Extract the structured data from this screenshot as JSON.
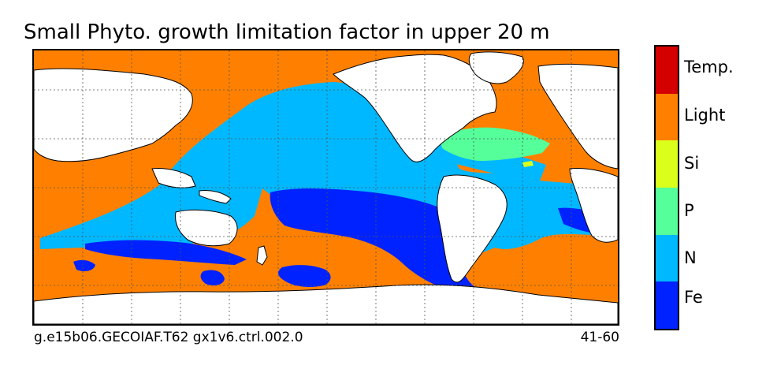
{
  "title": "Small Phyto. growth limitation factor in upper 20 m",
  "footer": {
    "left": "g.e15b06.GECOIAF.T62 gx1v6.ctrl.002.0",
    "right": "41-60"
  },
  "colorbar": {
    "entries": [
      {
        "label": "Temp.",
        "color": "#d40000"
      },
      {
        "label": "Light",
        "color": "#ff8000"
      },
      {
        "label": "Si",
        "color": "#d9ff1a"
      },
      {
        "label": "P",
        "color": "#55ff99"
      },
      {
        "label": "N",
        "color": "#00b8ff"
      },
      {
        "label": "Fe",
        "color": "#0022ff"
      }
    ]
  },
  "map": {
    "land_color": "#ffffff",
    "gridlines": "dotted"
  }
}
